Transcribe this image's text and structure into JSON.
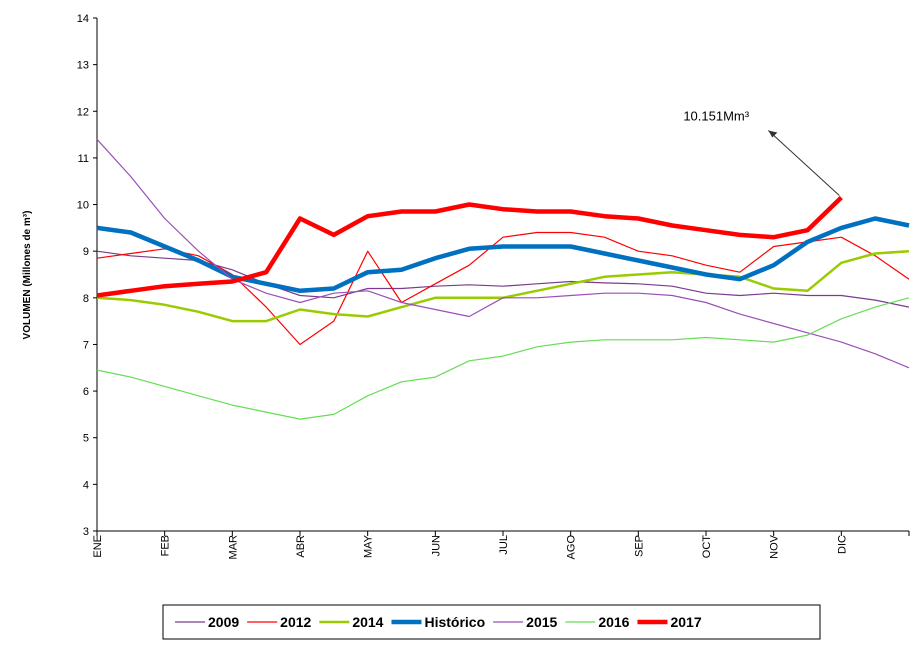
{
  "chart_data": {
    "type": "line",
    "y_label": "VOLUMEN (Millones de m³)",
    "x": [
      0,
      0.5,
      1,
      1.5,
      2,
      2.5,
      3,
      3.5,
      4,
      4.5,
      5,
      5.5,
      6,
      6.5,
      7,
      7.5,
      8,
      8.5,
      9,
      9.5,
      10,
      10.5,
      11,
      11.5,
      12
    ],
    "xlim": [
      0,
      12
    ],
    "xticks": [
      {
        "value": 0,
        "label": "ENE"
      },
      {
        "value": 1,
        "label": "FEB"
      },
      {
        "value": 2,
        "label": "MAR"
      },
      {
        "value": 3,
        "label": "ABR"
      },
      {
        "value": 4,
        "label": "MAY"
      },
      {
        "value": 5,
        "label": "JUN"
      },
      {
        "value": 6,
        "label": "JUL"
      },
      {
        "value": 7,
        "label": "AGO"
      },
      {
        "value": 8,
        "label": "SEP"
      },
      {
        "value": 9,
        "label": "OCT"
      },
      {
        "value": 10,
        "label": "NOV"
      },
      {
        "value": 11,
        "label": "DIC"
      }
    ],
    "ylim": [
      3,
      14
    ],
    "yticks": [
      3,
      4,
      5,
      6,
      7,
      8,
      9,
      10,
      11,
      12,
      13,
      14
    ],
    "grid": false,
    "legend": "bottom",
    "series": [
      {
        "name": "2009",
        "color": "#7a3b8c",
        "line_width": 1.2,
        "values": [
          9.0,
          8.9,
          8.85,
          8.8,
          8.6,
          8.3,
          8.05,
          8.0,
          8.2,
          8.2,
          8.25,
          8.28,
          8.25,
          8.3,
          8.35,
          8.32,
          8.3,
          8.25,
          8.1,
          8.05,
          8.1,
          8.05,
          8.05,
          7.95,
          7.8
        ]
      },
      {
        "name": "2012",
        "color": "#ff0000",
        "line_width": 1.2,
        "values": [
          8.85,
          8.95,
          9.05,
          8.9,
          8.5,
          7.8,
          7.0,
          7.5,
          9.0,
          7.9,
          8.3,
          8.7,
          9.3,
          9.4,
          9.4,
          9.3,
          9.0,
          8.9,
          8.7,
          8.55,
          9.1,
          9.2,
          9.3,
          8.9,
          8.4
        ]
      },
      {
        "name": "2014",
        "color": "#99cc00",
        "line_width": 2.5,
        "values": [
          8.0,
          7.95,
          7.85,
          7.7,
          7.5,
          7.5,
          7.75,
          7.65,
          7.6,
          7.8,
          8.0,
          8.0,
          8.0,
          8.15,
          8.3,
          8.45,
          8.5,
          8.55,
          8.5,
          8.45,
          8.2,
          8.15,
          8.75,
          8.95,
          9.0
        ]
      },
      {
        "name": "Histórico",
        "color": "#0070c0",
        "line_width": 4.5,
        "values": [
          9.5,
          9.4,
          9.1,
          8.8,
          8.45,
          8.3,
          8.15,
          8.2,
          8.55,
          8.6,
          8.85,
          9.05,
          9.1,
          9.1,
          9.1,
          8.95,
          8.8,
          8.65,
          8.5,
          8.4,
          8.7,
          9.2,
          9.5,
          9.7,
          9.55
        ]
      },
      {
        "name": "2015",
        "color": "#9b4fb8",
        "line_width": 1.2,
        "values": [
          11.4,
          10.6,
          9.7,
          9.0,
          8.4,
          8.1,
          7.9,
          8.1,
          8.15,
          7.9,
          7.75,
          7.6,
          8.0,
          8.0,
          8.05,
          8.1,
          8.1,
          8.05,
          7.9,
          7.65,
          7.45,
          7.25,
          7.05,
          6.8,
          6.5
        ]
      },
      {
        "name": "2016",
        "color": "#66dd55",
        "line_width": 1.2,
        "values": [
          6.45,
          6.3,
          6.1,
          5.9,
          5.7,
          5.55,
          5.4,
          5.5,
          5.9,
          6.2,
          6.3,
          6.65,
          6.75,
          6.95,
          7.05,
          7.1,
          7.1,
          7.1,
          7.15,
          7.1,
          7.05,
          7.2,
          7.55,
          7.8,
          8.0
        ]
      },
      {
        "name": "2017",
        "color": "#ff0000",
        "line_width": 4.5,
        "values": [
          8.05,
          8.15,
          8.25,
          8.3,
          8.35,
          8.55,
          9.7,
          9.35,
          9.75,
          9.85,
          9.85,
          10.0,
          9.9,
          9.85,
          9.85,
          9.75,
          9.7,
          9.55,
          9.45,
          9.35,
          9.3,
          9.45,
          10.151,
          null,
          null
        ]
      }
    ],
    "annotation": {
      "text": "10.151Mm³",
      "series": 6,
      "point": 22
    }
  }
}
